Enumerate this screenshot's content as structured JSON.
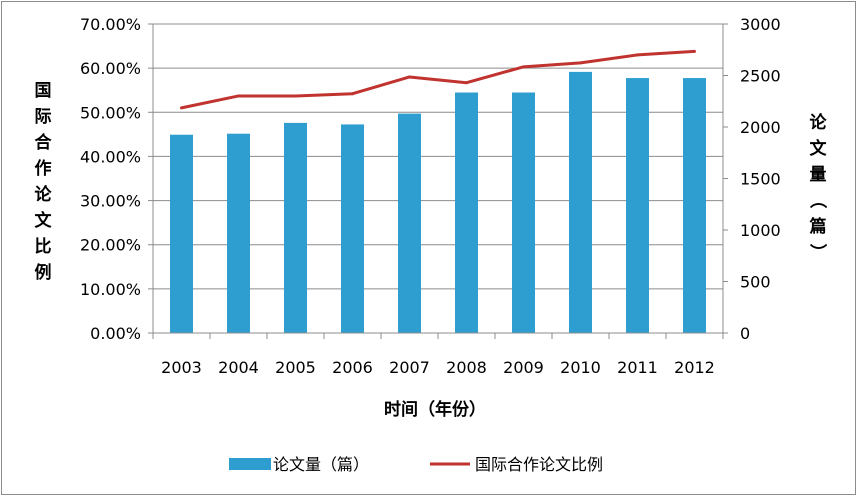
{
  "chart_data": {
    "type": "bar+line",
    "categories": [
      "2003",
      "2004",
      "2005",
      "2006",
      "2007",
      "2008",
      "2009",
      "2010",
      "2011",
      "2012"
    ],
    "series": [
      {
        "name": "论文量（篇）",
        "kind": "bar",
        "axis": "right",
        "values": [
          1925,
          1935,
          2040,
          2025,
          2130,
          2335,
          2335,
          2535,
          2475,
          2475
        ],
        "color": "#2e9ed1"
      },
      {
        "name": "国际合作论文比例",
        "kind": "line",
        "axis": "left",
        "values": [
          51.0,
          53.7,
          53.7,
          54.2,
          58.0,
          56.7,
          60.3,
          61.2,
          63.0,
          63.8
        ],
        "color": "#c0332f"
      }
    ],
    "y_left": {
      "label": "国际合作论文比例",
      "ticks": [
        "0.00%",
        "10.00%",
        "20.00%",
        "30.00%",
        "40.00%",
        "50.00%",
        "60.00%",
        "70.00%"
      ],
      "min": 0,
      "max": 70
    },
    "y_right": {
      "label": "论文量（篇）",
      "ticks": [
        "0",
        "500",
        "1000",
        "1500",
        "2000",
        "2500",
        "3000"
      ],
      "min": 0,
      "max": 3000
    },
    "xlabel": "时间（年份）",
    "grid": true,
    "legend_position": "bottom"
  }
}
